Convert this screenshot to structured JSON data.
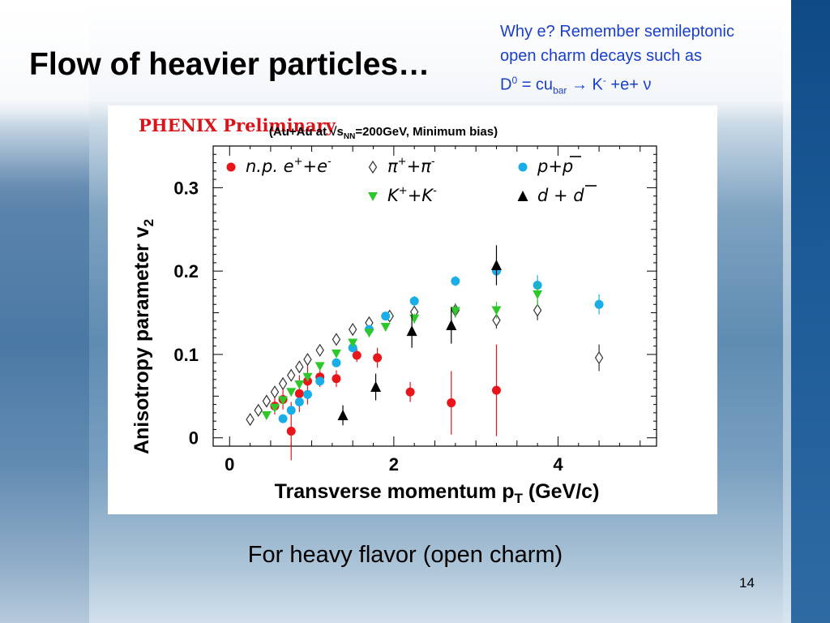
{
  "slide": {
    "title": "Flow of heavier particles…",
    "note": {
      "line1": "Why e? Remember semileptonic",
      "line2": "open charm decays such as",
      "line3": {
        "d": "D",
        "d_sup": "0",
        "eq": " = cu",
        "eq_sub": "bar",
        "arrow": " → ",
        "k": "K",
        "k_sup": "-",
        "rest": " +e+ ν"
      }
    },
    "caption": "For heavy flavor (open charm)",
    "page_number": "14"
  },
  "chart_data": {
    "type": "scatter",
    "banner": "PHENIX Preliminary",
    "subtitle": "(Au+Au at √s_NN=200GeV, Minimum bias)",
    "subtitle_parts": {
      "pre": "(Au+Au at ",
      "sqrt": "√",
      "s": "s",
      "nn": "NN",
      "post": "=200GeV, Minimum bias)"
    },
    "xlabel": "Transverse momentum p",
    "xlabel_sub": "T",
    "xlabel_unit": " (GeV/c)",
    "ylabel": "Anisotropy parameter v",
    "ylabel_sub": "2",
    "xlim": [
      -0.2,
      5.2
    ],
    "ylim": [
      -0.01,
      0.35
    ],
    "xticks": [
      0,
      2,
      4
    ],
    "xtick_labels": [
      "0",
      "2",
      "4"
    ],
    "yticks": [
      0,
      0.1,
      0.2,
      0.3
    ],
    "ytick_labels": [
      "0",
      "0.1",
      "0.2",
      "0.3"
    ],
    "legend_position": "top",
    "legend": [
      {
        "series": "electrons",
        "label": "n.p. e",
        "sup1": "+",
        "mid": "+e",
        "sup2": "-"
      },
      {
        "series": "pions",
        "label": "π",
        "sup1": "+",
        "mid": "+π",
        "sup2": "-"
      },
      {
        "series": "protons",
        "label": "p+p",
        "sup1": "",
        "mid": "",
        "sup2": ""
      },
      {
        "series": "kaons",
        "label": "K",
        "sup1": "+",
        "mid": "+K",
        "sup2": "-"
      },
      {
        "series": "deuterons",
        "label": "d + d",
        "sup1": "",
        "mid": "",
        "sup2": ""
      }
    ],
    "colors": {
      "electrons": "#e8151b",
      "pions": "#333333",
      "protons": "#19aee8",
      "kaons": "#2fc82a",
      "deuterons": "#000000",
      "banner": "#d8141b"
    },
    "series": [
      {
        "id": "electrons",
        "marker": "circle",
        "x": [
          0.55,
          0.65,
          0.75,
          0.85,
          0.95,
          1.1,
          1.3,
          1.55,
          1.8,
          2.2,
          2.7,
          3.25
        ],
        "y": [
          0.038,
          0.046,
          0.008,
          0.053,
          0.068,
          0.073,
          0.071,
          0.099,
          0.096,
          0.055,
          0.042,
          0.057
        ],
        "err": [
          0.01,
          0.012,
          0.035,
          0.022,
          0.028,
          0.012,
          0.01,
          0.008,
          0.012,
          0.012,
          0.038,
          0.055
        ]
      },
      {
        "id": "pions",
        "marker": "diamond",
        "x": [
          0.25,
          0.35,
          0.45,
          0.55,
          0.65,
          0.75,
          0.85,
          0.95,
          1.1,
          1.3,
          1.5,
          1.7,
          1.95,
          2.25,
          2.75,
          3.25,
          3.75,
          4.5
        ],
        "y": [
          0.022,
          0.033,
          0.044,
          0.055,
          0.065,
          0.075,
          0.085,
          0.094,
          0.105,
          0.118,
          0.13,
          0.138,
          0.146,
          0.151,
          0.153,
          0.141,
          0.153,
          0.096
        ],
        "err": [
          0,
          0,
          0,
          0,
          0,
          0,
          0,
          0,
          0,
          0,
          0,
          0,
          0.004,
          0.007,
          0.008,
          0.01,
          0.012,
          0.016
        ]
      },
      {
        "id": "protons",
        "marker": "circle",
        "x": [
          0.65,
          0.75,
          0.85,
          0.95,
          1.1,
          1.3,
          1.5,
          1.7,
          1.9,
          2.25,
          2.75,
          3.25,
          3.75,
          4.5
        ],
        "y": [
          0.023,
          0.033,
          0.043,
          0.052,
          0.068,
          0.09,
          0.108,
          0.13,
          0.146,
          0.164,
          0.188,
          0.2,
          0.183,
          0.16
        ],
        "err": [
          0,
          0,
          0,
          0,
          0,
          0,
          0,
          0,
          0.004,
          0.006,
          0.006,
          0.008,
          0.012,
          0.012
        ]
      },
      {
        "id": "kaons",
        "marker": "triangle-down",
        "x": [
          0.45,
          0.55,
          0.65,
          0.75,
          0.85,
          0.95,
          1.1,
          1.3,
          1.5,
          1.7,
          1.9,
          2.25,
          2.75,
          3.25,
          3.75
        ],
        "y": [
          0.027,
          0.036,
          0.045,
          0.055,
          0.064,
          0.073,
          0.086,
          0.101,
          0.114,
          0.126,
          0.133,
          0.143,
          0.152,
          0.153,
          0.172
        ],
        "err": [
          0,
          0,
          0,
          0,
          0,
          0,
          0,
          0,
          0,
          0,
          0.004,
          0.006,
          0.008,
          0.01,
          0.014
        ]
      },
      {
        "id": "deuterons",
        "marker": "triangle-up",
        "x": [
          1.38,
          1.78,
          2.22,
          2.7,
          3.25
        ],
        "y": [
          0.027,
          0.061,
          0.128,
          0.135,
          0.207
        ],
        "err": [
          0.012,
          0.016,
          0.02,
          0.022,
          0.024
        ]
      }
    ]
  }
}
